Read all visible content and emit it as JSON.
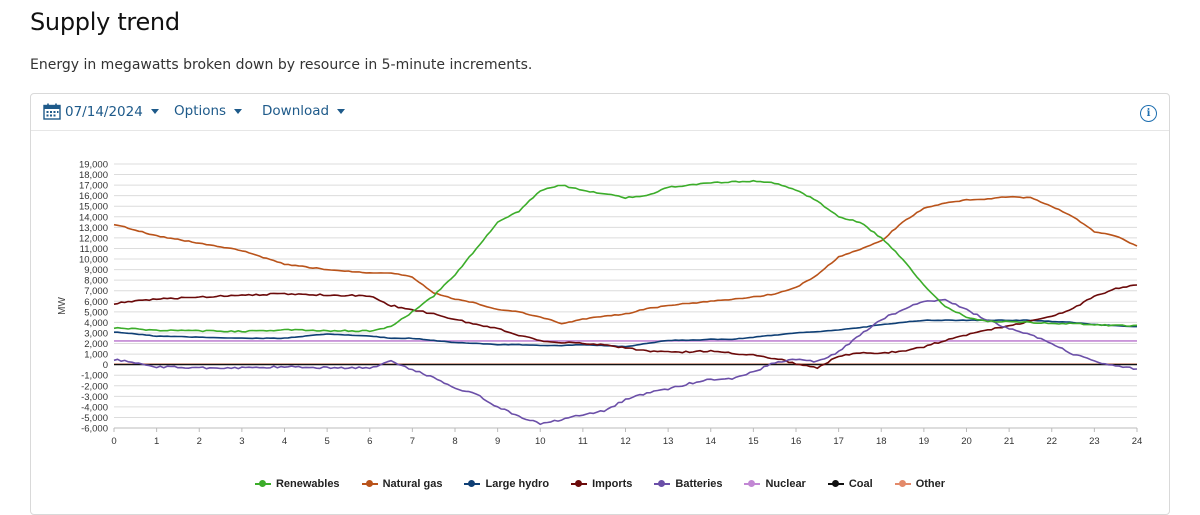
{
  "page": {
    "title": "Supply trend",
    "subtitle": "Energy in megawatts broken down by resource in 5-minute increments."
  },
  "toolbar": {
    "date": "07/14/2024",
    "options_label": "Options",
    "download_label": "Download",
    "icons": {
      "date": "calendar-icon",
      "info": "info-icon"
    }
  },
  "chart_data": {
    "type": "line",
    "title": "",
    "xlabel": "",
    "ylabel": "MW",
    "xlim": [
      0,
      24
    ],
    "ylim": [
      -6000,
      19000
    ],
    "x_ticks": [
      "0",
      "1",
      "2",
      "3",
      "4",
      "5",
      "6",
      "7",
      "8",
      "9",
      "10",
      "11",
      "12",
      "13",
      "14",
      "15",
      "16",
      "17",
      "18",
      "19",
      "20",
      "21",
      "22",
      "23",
      "24"
    ],
    "y_ticks": [
      "19,000",
      "18,000",
      "17,000",
      "16,000",
      "15,000",
      "14,000",
      "13,000",
      "12,000",
      "11,000",
      "10,000",
      "9,000",
      "8,000",
      "7,000",
      "6,000",
      "5,000",
      "4,000",
      "3,000",
      "2,000",
      "1,000",
      "0",
      "-1,000",
      "-2,000",
      "-3,000",
      "-4,000",
      "-5,000",
      "-6,000"
    ],
    "grid": true,
    "legend_position": "bottom",
    "x": [
      0,
      1,
      2,
      3,
      4,
      5,
      6,
      6.5,
      7,
      7.5,
      8,
      8.5,
      9,
      9.5,
      10,
      10.5,
      11,
      11.5,
      12,
      12.5,
      13,
      13.5,
      14,
      14.5,
      15,
      15.5,
      16,
      16.5,
      17,
      17.5,
      18,
      18.5,
      19,
      19.5,
      20,
      20.5,
      21,
      21.5,
      22,
      22.5,
      23,
      23.5,
      24
    ],
    "series": [
      {
        "name": "Renewables",
        "color": "#3cad2a",
        "values": [
          3500,
          3250,
          3200,
          3150,
          3300,
          3200,
          3200,
          3600,
          5000,
          6500,
          8500,
          11000,
          13500,
          14500,
          16500,
          17000,
          16500,
          16200,
          15800,
          16000,
          16800,
          17000,
          17200,
          17300,
          17400,
          17200,
          16500,
          15500,
          14000,
          13500,
          12000,
          10000,
          7500,
          5500,
          4500,
          4100,
          4100,
          4000,
          3900,
          3900,
          3800,
          3700,
          3700
        ]
      },
      {
        "name": "Natural gas",
        "color": "#b9531a",
        "values": [
          13300,
          12200,
          11500,
          10800,
          9500,
          9000,
          8700,
          8700,
          8300,
          6800,
          6200,
          5800,
          5200,
          5000,
          4500,
          3900,
          4300,
          4600,
          4800,
          5300,
          5600,
          5800,
          6000,
          6200,
          6400,
          6700,
          7300,
          8500,
          10200,
          10900,
          11700,
          13500,
          14800,
          15300,
          15600,
          15700,
          15900,
          15800,
          15000,
          14000,
          12600,
          12200,
          11200
        ]
      },
      {
        "name": "Large hydro",
        "color": "#0f3f75",
        "values": [
          3100,
          2700,
          2600,
          2500,
          2500,
          2900,
          2700,
          2500,
          2500,
          2300,
          2100,
          2000,
          1900,
          1900,
          1800,
          1800,
          1900,
          1800,
          1700,
          2000,
          2300,
          2300,
          2400,
          2400,
          2600,
          2800,
          3000,
          3100,
          3300,
          3500,
          3800,
          4000,
          4200,
          4200,
          4200,
          4200,
          4200,
          4200,
          4100,
          4000,
          3800,
          3700,
          3600
        ]
      },
      {
        "name": "Imports",
        "color": "#6b0a0a",
        "values": [
          5800,
          6200,
          6400,
          6600,
          6700,
          6600,
          6500,
          5600,
          5200,
          4800,
          4300,
          3800,
          3400,
          2800,
          2300,
          2100,
          2000,
          1900,
          1600,
          1300,
          1200,
          1200,
          1300,
          1100,
          900,
          600,
          100,
          -300,
          800,
          1100,
          1100,
          1300,
          1700,
          2300,
          2800,
          3300,
          3700,
          4100,
          4600,
          5300,
          6500,
          7200,
          7600
        ]
      },
      {
        "name": "Batteries",
        "color": "#6b4fa8",
        "values": [
          500,
          -200,
          -300,
          -300,
          -200,
          -300,
          -300,
          300,
          -500,
          -1200,
          -2200,
          -2800,
          -4000,
          -4900,
          -5600,
          -5200,
          -4700,
          -4400,
          -3300,
          -2700,
          -2300,
          -1800,
          -1400,
          -1300,
          -700,
          200,
          500,
          300,
          1200,
          2800,
          4300,
          5200,
          6000,
          6100,
          5200,
          4200,
          3400,
          2800,
          2000,
          1000,
          300,
          -100,
          -400
        ]
      },
      {
        "name": "Nuclear",
        "color": "#c287d4",
        "values": [
          2250,
          2250,
          2250,
          2250,
          2250,
          2250,
          2250,
          2250,
          2250,
          2250,
          2250,
          2250,
          2250,
          2250,
          2250,
          2250,
          2250,
          2250,
          2250,
          2250,
          2250,
          2250,
          2250,
          2250,
          2250,
          2250,
          2250,
          2250,
          2250,
          2250,
          2250,
          2250,
          2250,
          2250,
          2250,
          2250,
          2250,
          2250,
          2250,
          2250,
          2250,
          2250,
          2250
        ]
      },
      {
        "name": "Coal",
        "color": "#111111",
        "values": [
          0,
          0,
          0,
          0,
          0,
          0,
          0,
          0,
          0,
          0,
          0,
          0,
          0,
          0,
          0,
          0,
          0,
          0,
          0,
          0,
          0,
          0,
          0,
          0,
          0,
          0,
          0,
          0,
          0,
          0,
          0,
          0,
          0,
          0,
          0,
          0,
          0,
          0,
          0,
          0,
          0,
          0,
          0
        ]
      },
      {
        "name": "Other",
        "color": "#e38a6a",
        "values": [
          50,
          50,
          50,
          50,
          50,
          50,
          50,
          50,
          50,
          50,
          50,
          50,
          50,
          50,
          50,
          50,
          50,
          50,
          50,
          50,
          50,
          50,
          50,
          50,
          50,
          50,
          50,
          50,
          50,
          50,
          50,
          50,
          50,
          50,
          50,
          50,
          50,
          50,
          50,
          50,
          50,
          50,
          50
        ]
      }
    ]
  }
}
